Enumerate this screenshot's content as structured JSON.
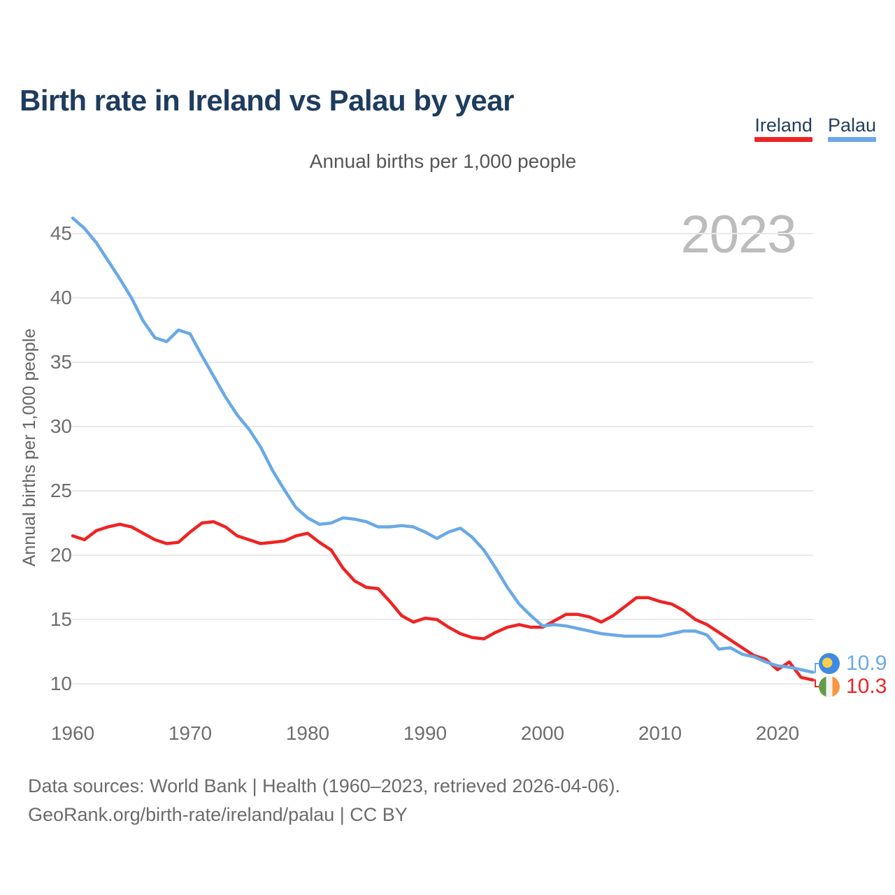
{
  "header": {
    "title": "Birth rate in Ireland vs Palau by year"
  },
  "legend": {
    "items": [
      {
        "label": "Ireland",
        "color": "#ee2424"
      },
      {
        "label": "Palau",
        "color": "#6aa9e6"
      }
    ]
  },
  "chart_data": {
    "type": "line",
    "title": "Birth rate in Ireland vs Palau by year",
    "subtitle": "Annual births per 1,000 people",
    "ylabel": "Annual births per 1,000 people",
    "watermark": "2023",
    "grid": true,
    "legend_position": "top-right",
    "xlim": [
      1960,
      2023
    ],
    "ylim": [
      10,
      47
    ],
    "x_ticks": [
      1960,
      1970,
      1980,
      1990,
      2000,
      2010,
      2020
    ],
    "y_ticks": [
      10,
      15,
      20,
      25,
      30,
      35,
      40,
      45
    ],
    "x": [
      1960,
      1961,
      1962,
      1963,
      1964,
      1965,
      1966,
      1967,
      1968,
      1969,
      1970,
      1971,
      1972,
      1973,
      1974,
      1975,
      1976,
      1977,
      1978,
      1979,
      1980,
      1981,
      1982,
      1983,
      1984,
      1985,
      1986,
      1987,
      1988,
      1989,
      1990,
      1991,
      1992,
      1993,
      1994,
      1995,
      1996,
      1997,
      1998,
      1999,
      2000,
      2001,
      2002,
      2003,
      2004,
      2005,
      2006,
      2007,
      2008,
      2009,
      2010,
      2011,
      2012,
      2013,
      2014,
      2015,
      2016,
      2017,
      2018,
      2019,
      2020,
      2021,
      2022,
      2023
    ],
    "series": [
      {
        "name": "Ireland",
        "color": "#ee2424",
        "end_label": "10.3",
        "values": [
          21.5,
          21.2,
          21.9,
          22.2,
          22.4,
          22.2,
          21.7,
          21.2,
          20.9,
          21.0,
          21.8,
          22.5,
          22.6,
          22.2,
          21.5,
          21.2,
          20.9,
          21.0,
          21.1,
          21.5,
          21.7,
          21.0,
          20.4,
          19.0,
          18.0,
          17.5,
          17.4,
          16.4,
          15.3,
          14.8,
          15.1,
          15.0,
          14.4,
          13.9,
          13.6,
          13.5,
          14.0,
          14.4,
          14.6,
          14.4,
          14.4,
          14.9,
          15.4,
          15.4,
          15.2,
          14.8,
          15.3,
          16.0,
          16.7,
          16.7,
          16.4,
          16.2,
          15.7,
          15.0,
          14.6,
          14.0,
          13.4,
          12.8,
          12.2,
          11.9,
          11.1,
          11.7,
          10.5,
          10.3
        ]
      },
      {
        "name": "Palau",
        "color": "#6aa9e6",
        "end_label": "10.9",
        "values": [
          46.2,
          45.4,
          44.3,
          42.9,
          41.5,
          40.0,
          38.2,
          36.9,
          36.6,
          37.5,
          37.2,
          35.5,
          33.9,
          32.3,
          30.9,
          29.8,
          28.4,
          26.6,
          25.1,
          23.7,
          22.9,
          22.4,
          22.5,
          22.9,
          22.8,
          22.6,
          22.2,
          22.2,
          22.3,
          22.2,
          21.8,
          21.3,
          21.8,
          22.1,
          21.4,
          20.4,
          19.0,
          17.5,
          16.2,
          15.3,
          14.5,
          14.6,
          14.5,
          14.3,
          14.1,
          13.9,
          13.8,
          13.7,
          13.7,
          13.7,
          13.7,
          13.9,
          14.1,
          14.1,
          13.8,
          12.7,
          12.8,
          12.3,
          12.1,
          11.7,
          11.4,
          11.3,
          11.1,
          10.9
        ]
      }
    ]
  },
  "footer": {
    "line1": "Data sources: World Bank | Health (1960–2023, retrieved 2026-04-06).",
    "line2": "GeoRank.org/birth-rate/ireland/palau | CC BY"
  }
}
